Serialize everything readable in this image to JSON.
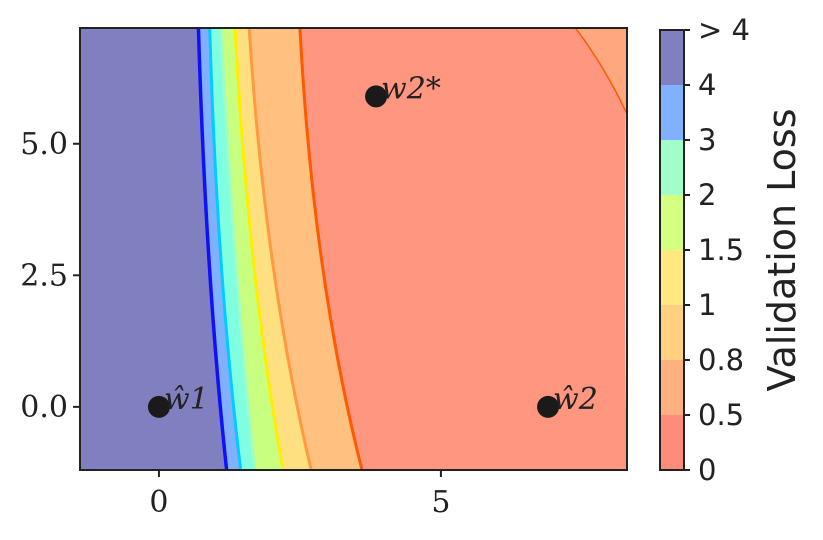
{
  "chart_data": {
    "type": "contour",
    "title": "",
    "xlabel": "",
    "ylabel": "",
    "xlim": [
      -1.4,
      8.3
    ],
    "ylim": [
      -1.2,
      7.2
    ],
    "x_ticks": [
      0,
      5
    ],
    "x_tick_labels": [
      "0",
      "5"
    ],
    "y_ticks": [
      0.0,
      2.5,
      5.0
    ],
    "y_tick_labels": [
      "0.0",
      "2.5",
      "5.0"
    ],
    "grid": false,
    "points": [
      {
        "label": "ŵ1",
        "x": 0.0,
        "y": 0.0
      },
      {
        "label": "w2*",
        "x": 3.85,
        "y": 5.9
      },
      {
        "label": "ŵ2",
        "x": 6.9,
        "y": 0.0
      }
    ],
    "colorbar": {
      "title": "Validation Loss",
      "levels": [
        "0",
        "0.5",
        "0.8",
        "1",
        "1.5",
        "2",
        "3",
        "4",
        "> 4"
      ],
      "colors": [
        "#d98080",
        "#ff8c7a",
        "#ffb080",
        "#ffd080",
        "#ffe980",
        "#d4ff80",
        "#a0ffc8",
        "#80b0ff",
        "#8080c0"
      ]
    },
    "contour_bands": [
      {
        "level_from": "> 4",
        "color": "#8080c0",
        "x_top": 0.7,
        "x_mid": 0.9,
        "x_bottom": 1.2
      },
      {
        "level_from": "4",
        "color": "#80b0ff",
        "x_top": 0.9,
        "x_mid": 1.1,
        "x_bottom": 1.45
      },
      {
        "level_from": "3",
        "color": "#80ffe0",
        "x_top": 1.1,
        "x_mid": 1.4,
        "x_bottom": 1.7
      },
      {
        "level_from": "2",
        "color": "#c8ff80",
        "x_top": 1.35,
        "x_mid": 1.65,
        "x_bottom": 2.2
      },
      {
        "level_from": "1.5",
        "color": "#ffe080",
        "x_top": 1.6,
        "x_mid": 1.95,
        "x_bottom": 2.7
      },
      {
        "level_from": "1",
        "color": "#ffc080",
        "x_top": 2.5,
        "x_mid": 2.8,
        "x_bottom": 3.6
      },
      {
        "level_from": "0.8",
        "color": "#ff9680",
        "x_top": 8.3,
        "x_mid": 8.3,
        "x_bottom": 8.3
      }
    ]
  }
}
